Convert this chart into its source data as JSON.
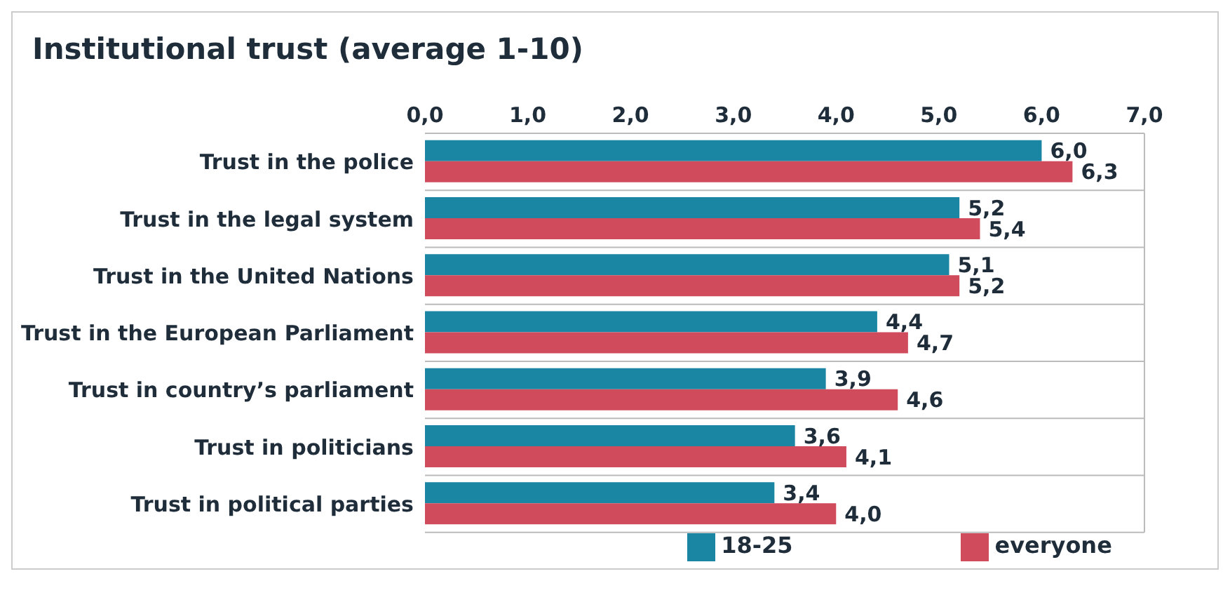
{
  "chart_data": {
    "type": "bar",
    "orientation": "horizontal",
    "title": "Institutional trust (average 1-10)",
    "categories": [
      "Trust in the police",
      "Trust in the legal system",
      "Trust in the United Nations",
      "Trust in the European Parliament",
      "Trust in country’s parliament",
      "Trust in politicians",
      "Trust in political parties"
    ],
    "series": [
      {
        "name": "18-25",
        "color": "#1a86a3",
        "values": [
          6.0,
          5.2,
          5.1,
          4.4,
          3.9,
          3.6,
          3.4
        ],
        "value_labels": [
          "6,0",
          "5,2",
          "5,1",
          "4,4",
          "3,9",
          "3,6",
          "3,4"
        ]
      },
      {
        "name": "everyone",
        "color": "#d04b5c",
        "values": [
          6.3,
          5.4,
          5.2,
          4.7,
          4.6,
          4.1,
          4.0
        ],
        "value_labels": [
          "6,3",
          "5,4",
          "5,2",
          "4,7",
          "4,6",
          "4,1",
          "4,0"
        ]
      }
    ],
    "xlim": [
      0,
      7
    ],
    "xticks": [
      {
        "value": 0,
        "label": "0,0"
      },
      {
        "value": 1,
        "label": "1,0"
      },
      {
        "value": 2,
        "label": "2,0"
      },
      {
        "value": 3,
        "label": "3,0"
      },
      {
        "value": 4,
        "label": "4,0"
      },
      {
        "value": 5,
        "label": "5,0"
      },
      {
        "value": 6,
        "label": "6,0"
      },
      {
        "value": 7,
        "label": "7,0"
      }
    ],
    "grid": true,
    "legend": "bottom"
  }
}
